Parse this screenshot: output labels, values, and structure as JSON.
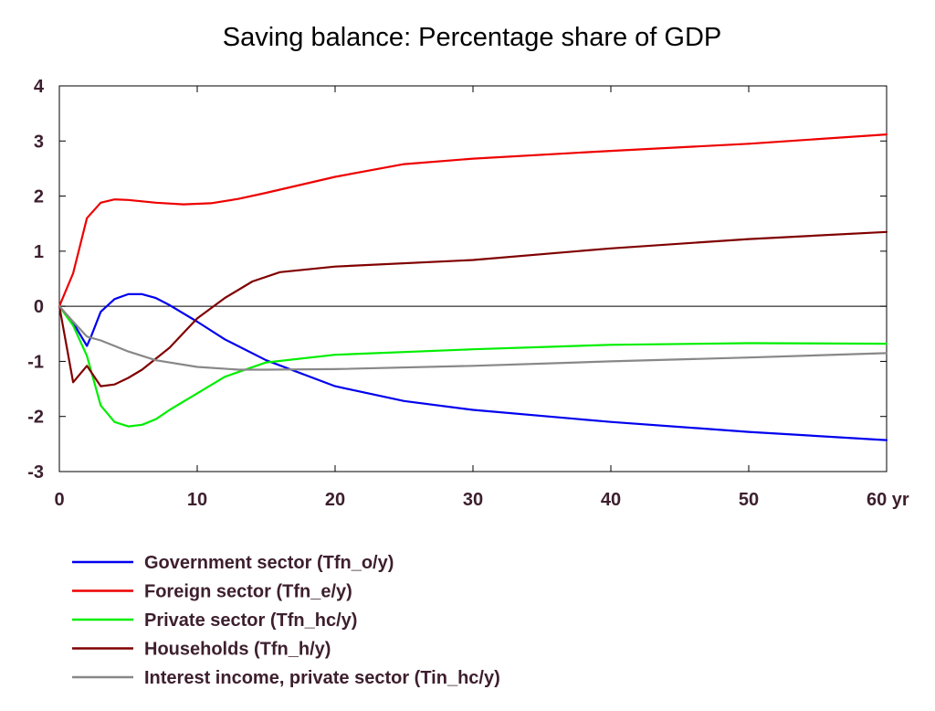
{
  "chart_data": {
    "type": "line",
    "title": "Saving balance: Percentage share of GDP",
    "xlim": [
      0,
      60
    ],
    "ylim": [
      -3,
      4
    ],
    "x_ticks": [
      0,
      10,
      20,
      30,
      40,
      50,
      60
    ],
    "x_tick_labels": [
      "0",
      "10",
      "20",
      "30",
      "40",
      "50",
      "60 yr"
    ],
    "y_ticks": [
      4,
      3,
      2,
      1,
      0,
      -1,
      -2,
      -3
    ],
    "y_tick_labels": [
      "4",
      "3",
      "2",
      "1",
      "0",
      "-1",
      "-2",
      "-3"
    ],
    "zero_line": true,
    "grid": false,
    "legend_position": "bottom",
    "series": [
      {
        "name": "Government sector (Tfn_o/y)",
        "color": "#0000ee",
        "points": [
          [
            0,
            0
          ],
          [
            1,
            -0.3
          ],
          [
            2,
            -0.72
          ],
          [
            2.3,
            -0.55
          ],
          [
            3,
            -0.1
          ],
          [
            4,
            0.13
          ],
          [
            5,
            0.22
          ],
          [
            6,
            0.22
          ],
          [
            7,
            0.15
          ],
          [
            8,
            0.02
          ],
          [
            10,
            -0.28
          ],
          [
            12,
            -0.6
          ],
          [
            15,
            -0.98
          ],
          [
            20,
            -1.45
          ],
          [
            25,
            -1.72
          ],
          [
            30,
            -1.88
          ],
          [
            40,
            -2.1
          ],
          [
            50,
            -2.28
          ],
          [
            60,
            -2.43
          ]
        ]
      },
      {
        "name": "Foreign sector (Tfn_e/y)",
        "color": "#ee0000",
        "points": [
          [
            0,
            0
          ],
          [
            1,
            0.6
          ],
          [
            2,
            1.6
          ],
          [
            3,
            1.88
          ],
          [
            4,
            1.94
          ],
          [
            5,
            1.93
          ],
          [
            7,
            1.88
          ],
          [
            9,
            1.85
          ],
          [
            11,
            1.87
          ],
          [
            13,
            1.95
          ],
          [
            15,
            2.06
          ],
          [
            20,
            2.35
          ],
          [
            25,
            2.58
          ],
          [
            30,
            2.68
          ],
          [
            40,
            2.82
          ],
          [
            50,
            2.95
          ],
          [
            60,
            3.12
          ]
        ]
      },
      {
        "name": "Private sector (Tfn_hc/y)",
        "color": "#00ee00",
        "points": [
          [
            0,
            0
          ],
          [
            1,
            -0.35
          ],
          [
            2,
            -0.9
          ],
          [
            3,
            -1.8
          ],
          [
            4,
            -2.1
          ],
          [
            5,
            -2.18
          ],
          [
            6,
            -2.15
          ],
          [
            7,
            -2.05
          ],
          [
            8,
            -1.88
          ],
          [
            10,
            -1.58
          ],
          [
            12,
            -1.28
          ],
          [
            15,
            -1.02
          ],
          [
            20,
            -0.88
          ],
          [
            30,
            -0.78
          ],
          [
            40,
            -0.7
          ],
          [
            50,
            -0.67
          ],
          [
            60,
            -0.68
          ]
        ]
      },
      {
        "name": "Households (Tfn_h/y)",
        "color": "#800000",
        "points": [
          [
            0,
            0
          ],
          [
            1,
            -1.38
          ],
          [
            2,
            -1.08
          ],
          [
            3,
            -1.45
          ],
          [
            4,
            -1.42
          ],
          [
            5,
            -1.3
          ],
          [
            6,
            -1.15
          ],
          [
            8,
            -0.75
          ],
          [
            10,
            -0.22
          ],
          [
            12,
            0.15
          ],
          [
            14,
            0.45
          ],
          [
            16,
            0.62
          ],
          [
            20,
            0.72
          ],
          [
            30,
            0.84
          ],
          [
            40,
            1.05
          ],
          [
            50,
            1.22
          ],
          [
            60,
            1.35
          ]
        ]
      },
      {
        "name": "Interest income, private sector (Tin_hc/y)",
        "color": "#888888",
        "points": [
          [
            0,
            0
          ],
          [
            1,
            -0.28
          ],
          [
            2,
            -0.55
          ],
          [
            3,
            -0.62
          ],
          [
            5,
            -0.82
          ],
          [
            7,
            -0.98
          ],
          [
            10,
            -1.1
          ],
          [
            13,
            -1.15
          ],
          [
            15,
            -1.15
          ],
          [
            20,
            -1.14
          ],
          [
            30,
            -1.08
          ],
          [
            40,
            -1.0
          ],
          [
            50,
            -0.93
          ],
          [
            60,
            -0.85
          ]
        ]
      }
    ]
  }
}
